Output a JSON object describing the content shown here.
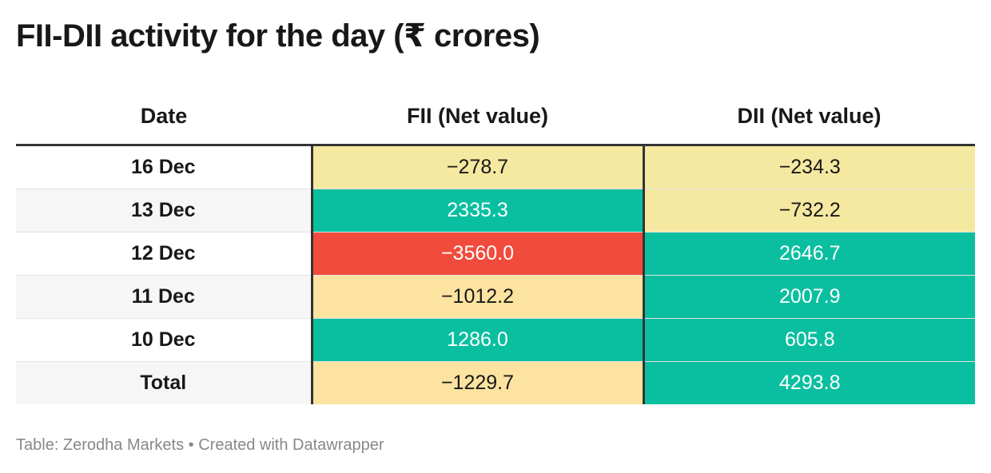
{
  "title": "FII-DII activity for the day (₹ crores)",
  "footer": "Table: Zerodha Markets • Created with Datawrapper",
  "colors": {
    "yellow": "#f5e8a0",
    "light_yellow": "#fce3a0",
    "teal": "#0abfa0",
    "red": "#f04b3c",
    "teal_text": "#ffffff",
    "yellow_text": "#181818"
  },
  "chart_data": {
    "type": "table",
    "title": "FII-DII activity for the day (₹ crores)",
    "columns": [
      "Date",
      "FII (Net value)",
      "DII (Net value)"
    ],
    "rows": [
      {
        "date": "16 Dec",
        "fii": "−278.7",
        "dii": "−234.3",
        "fii_color": "yellow",
        "dii_color": "yellow"
      },
      {
        "date": "13 Dec",
        "fii": "2335.3",
        "dii": "−732.2",
        "fii_color": "teal",
        "dii_color": "yellow"
      },
      {
        "date": "12 Dec",
        "fii": "−3560.0",
        "dii": "2646.7",
        "fii_color": "red",
        "dii_color": "teal"
      },
      {
        "date": "11 Dec",
        "fii": "−1012.2",
        "dii": "2007.9",
        "fii_color": "light_yellow",
        "dii_color": "teal"
      },
      {
        "date": "10 Dec",
        "fii": "1286.0",
        "dii": "605.8",
        "fii_color": "teal",
        "dii_color": "teal"
      },
      {
        "date": "Total",
        "fii": "−1229.7",
        "dii": "4293.8",
        "fii_color": "light_yellow",
        "dii_color": "teal"
      }
    ]
  }
}
